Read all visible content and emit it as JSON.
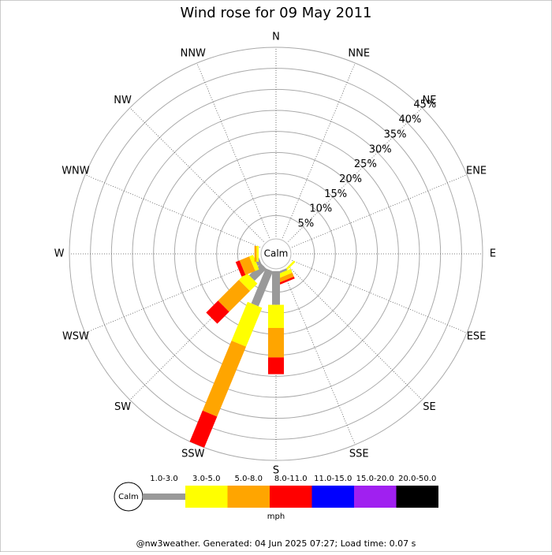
{
  "chart_data": {
    "type": "windrose",
    "title": "Wind rose for 09 May 2011",
    "center_label": "Calm",
    "directions": [
      "N",
      "NNE",
      "NE",
      "ENE",
      "E",
      "ESE",
      "SE",
      "SSE",
      "S",
      "SSW",
      "SW",
      "WSW",
      "W",
      "WNW",
      "NW",
      "NNW"
    ],
    "rlim": [
      0,
      45
    ],
    "rticks": [
      {
        "value": 5,
        "label": "5%"
      },
      {
        "value": 10,
        "label": "10%"
      },
      {
        "value": 15,
        "label": "15%"
      },
      {
        "value": 20,
        "label": "20%"
      },
      {
        "value": 25,
        "label": "25%"
      },
      {
        "value": 30,
        "label": "30%"
      },
      {
        "value": 35,
        "label": "35%"
      },
      {
        "value": 40,
        "label": "40%"
      },
      {
        "value": 45,
        "label": "45%"
      }
    ],
    "grid": true,
    "series": [
      {
        "name": "1.0-3.0",
        "color": "#999999",
        "values": [
          0,
          0,
          0,
          0,
          0,
          0,
          0,
          0.5,
          8,
          9,
          4,
          1,
          0,
          0,
          0,
          0
        ]
      },
      {
        "name": "3.0-5.0",
        "color": "#ffff00",
        "values": [
          0,
          0,
          0,
          0,
          0,
          0,
          0.5,
          1,
          5.5,
          10,
          2.5,
          1,
          0.5,
          0,
          0,
          0
        ]
      },
      {
        "name": "5.0-8.0",
        "color": "#ffa500",
        "values": [
          0,
          0,
          0,
          0,
          0,
          0,
          0,
          1,
          7,
          18,
          7,
          2.5,
          0.5,
          0,
          0,
          0
        ]
      },
      {
        "name": "8.0-11.0",
        "color": "#ff0000",
        "values": [
          0,
          0,
          0,
          0,
          0,
          0,
          0,
          0.5,
          4,
          8,
          4,
          1,
          0,
          0,
          0,
          0
        ]
      },
      {
        "name": "11.0-15.0",
        "color": "#0000ff",
        "values": [
          0,
          0,
          0,
          0,
          0,
          0,
          0,
          0,
          0,
          0,
          0,
          0,
          0,
          0,
          0,
          0
        ]
      },
      {
        "name": "15.0-20.0",
        "color": "#a020f0",
        "values": [
          0,
          0,
          0,
          0,
          0,
          0,
          0,
          0,
          0,
          0,
          0,
          0,
          0,
          0,
          0,
          0
        ]
      },
      {
        "name": "20.0-50.0",
        "color": "#000000",
        "values": [
          0,
          0,
          0,
          0,
          0,
          0,
          0,
          0,
          0,
          0,
          0,
          0,
          0,
          0,
          0,
          0
        ]
      }
    ],
    "legend_unit": "mph",
    "footer": "@nw3weather. Generated: 04 Jun 2025 07:27; Load time: 0.07 s"
  }
}
